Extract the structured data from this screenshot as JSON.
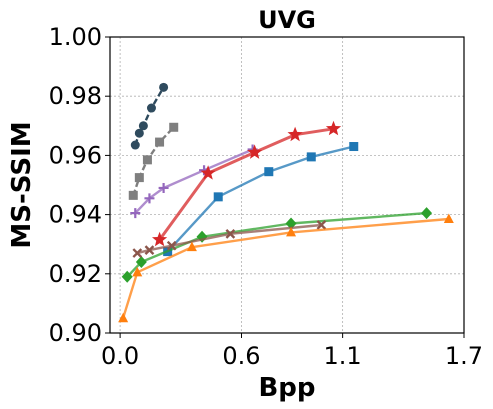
{
  "chart_data": {
    "type": "line",
    "title": "UVG",
    "xlabel": "Bpp",
    "ylabel": "MS-SSIM",
    "xlim": [
      -0.05,
      1.7
    ],
    "ylim": [
      0.9,
      1.0
    ],
    "xticks": [
      0.0,
      0.6,
      1.1,
      1.7
    ],
    "xtick_labels": [
      "0.0",
      "0.6",
      "1.1",
      "1.7"
    ],
    "yticks": [
      0.9,
      0.92,
      0.94,
      0.96,
      0.98,
      1.0
    ],
    "ytick_labels": [
      "0.90",
      "0.92",
      "0.94",
      "0.96",
      "0.98",
      "1.00"
    ],
    "grid": true,
    "series": [
      {
        "color": "#2f4b5e",
        "marker": "circle",
        "dashed": true,
        "x": [
          0.075,
          0.095,
          0.115,
          0.155,
          0.215
        ],
        "y": [
          0.9635,
          0.9675,
          0.97,
          0.976,
          0.983
        ]
      },
      {
        "color": "#7f7f7f",
        "marker": "square",
        "dashed": true,
        "x": [
          0.065,
          0.095,
          0.135,
          0.195,
          0.265
        ],
        "y": [
          0.9465,
          0.9525,
          0.9585,
          0.9645,
          0.9695
        ]
      },
      {
        "color": "#9467bd",
        "marker": "plus",
        "dashed": false,
        "x": [
          0.075,
          0.145,
          0.215,
          0.415,
          0.655
        ],
        "y": [
          0.9405,
          0.9455,
          0.949,
          0.955,
          0.962
        ]
      },
      {
        "color": "#d62728",
        "marker": "star",
        "dashed": false,
        "x": [
          0.195,
          0.435,
          0.665,
          0.865,
          1.055
        ],
        "y": [
          0.9315,
          0.954,
          0.961,
          0.967,
          0.969
        ]
      },
      {
        "color": "#1f77b4",
        "marker": "square",
        "dashed": false,
        "x": [
          0.235,
          0.485,
          0.735,
          0.945,
          1.155
        ],
        "y": [
          0.9275,
          0.946,
          0.9545,
          0.9595,
          0.963
        ]
      },
      {
        "color": "#2ca02c",
        "marker": "diamond",
        "dashed": false,
        "x": [
          0.035,
          0.105,
          0.405,
          0.845,
          1.515
        ],
        "y": [
          0.919,
          0.924,
          0.9325,
          0.937,
          0.9405
        ]
      },
      {
        "color": "#8c564b",
        "marker": "x",
        "dashed": false,
        "x": [
          0.085,
          0.145,
          0.255,
          0.545,
          0.995
        ],
        "y": [
          0.927,
          0.928,
          0.9295,
          0.9335,
          0.9365
        ]
      },
      {
        "color": "#ff7f0e",
        "marker": "triangle",
        "dashed": false,
        "x": [
          0.015,
          0.085,
          0.355,
          0.845,
          1.625
        ],
        "y": [
          0.905,
          0.9205,
          0.929,
          0.934,
          0.9385
        ]
      }
    ]
  }
}
